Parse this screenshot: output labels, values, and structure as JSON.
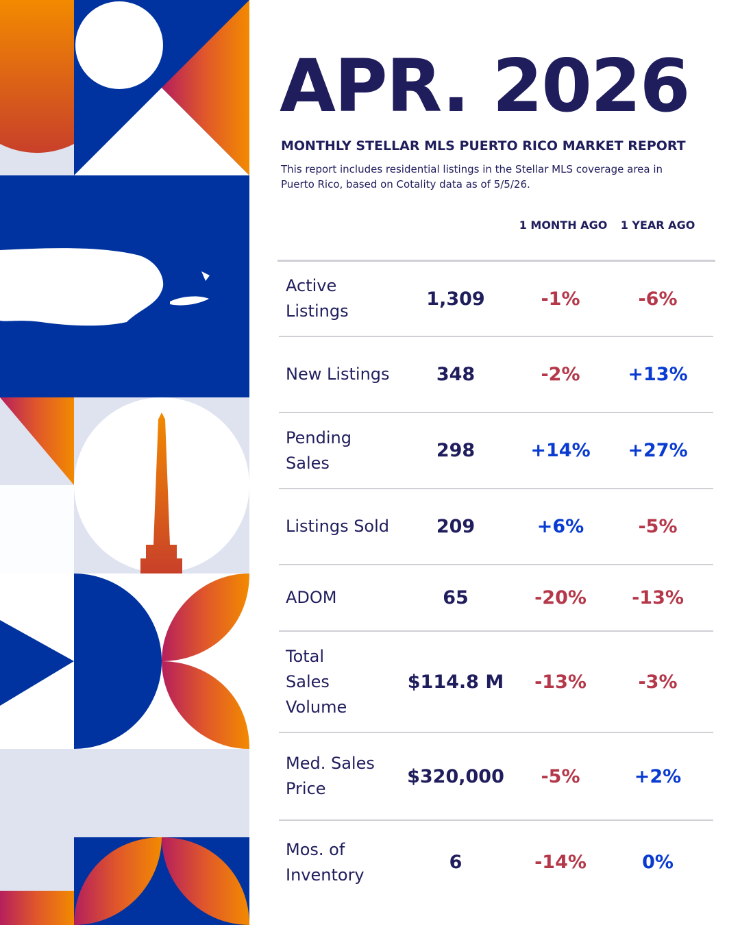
{
  "header": {
    "title": "APR. 2026",
    "subtitle": "MONTHLY STELLAR MLS PUERTO RICO MARKET REPORT",
    "description": "This report includes residential listings in the Stellar MLS coverage area in Puerto Rico, based on Cotality data as of 5/5/26."
  },
  "table": {
    "columns": [
      "1 MONTH AGO",
      "1 YEAR AGO"
    ],
    "rows": [
      [
        "Active Listings",
        "1,309",
        "-1%",
        "-6%"
      ],
      [
        "New Listings",
        "348",
        "-2%",
        "+13%"
      ],
      [
        "Pending Sales",
        "298",
        "+14%",
        "+27%"
      ],
      [
        "Listings Sold",
        "209",
        "+6%",
        "-5%"
      ],
      [
        "ADOM",
        "65",
        "-20%",
        "-13%"
      ],
      [
        "Total Sales Volume",
        "$114.8 M",
        "-13%",
        "-3%"
      ],
      [
        "Med. Sales Price",
        "$320,000",
        "-5%",
        "+2%"
      ],
      [
        "Mos. of Inventory",
        "6",
        "-14%",
        "0%"
      ]
    ]
  }
}
